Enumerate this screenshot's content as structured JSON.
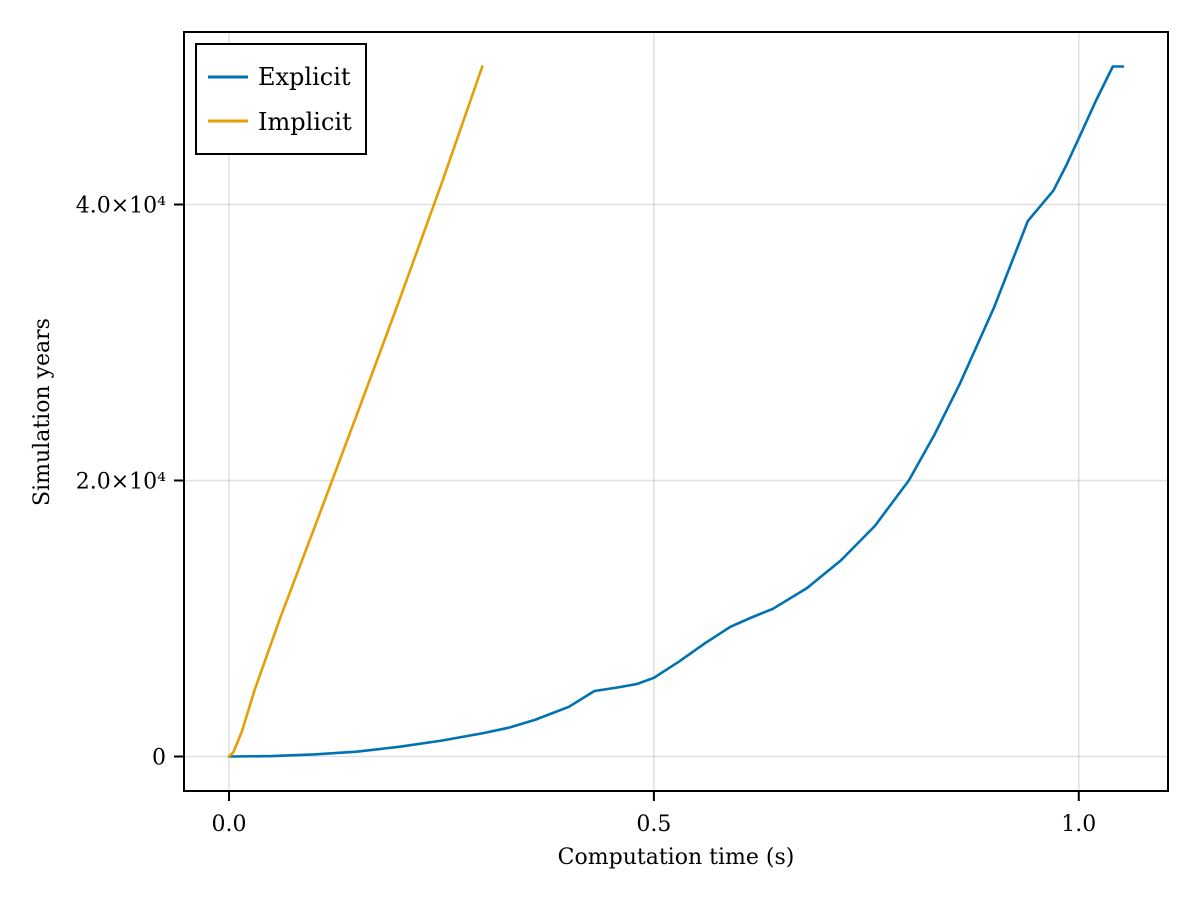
{
  "chart_data": {
    "type": "line",
    "title": "",
    "xlabel": "Computation time (s)",
    "ylabel": "Simulation years",
    "xlim": [
      -0.053,
      1.105
    ],
    "ylim": [
      -2500,
      52500
    ],
    "xticks": [
      0.0,
      0.5,
      1.0
    ],
    "xtick_labels": [
      "0.0",
      "0.5",
      "1.0"
    ],
    "yticks": [
      0,
      20000,
      40000
    ],
    "ytick_labels": [
      "0",
      "2.0×10⁴",
      "4.0×10⁴"
    ],
    "grid": true,
    "legend_position": "top-left",
    "series": [
      {
        "name": "Explicit",
        "color": "#0072B2",
        "x": [
          0.0,
          0.05,
          0.1,
          0.15,
          0.2,
          0.25,
          0.3,
          0.33,
          0.36,
          0.4,
          0.43,
          0.457,
          0.48,
          0.5,
          0.53,
          0.56,
          0.59,
          0.612,
          0.64,
          0.68,
          0.72,
          0.76,
          0.8,
          0.83,
          0.86,
          0.9,
          0.94,
          0.97,
          0.985,
          1.0,
          1.02,
          1.04,
          1.052
        ],
        "y": [
          0,
          30,
          150,
          350,
          700,
          1150,
          1700,
          2100,
          2650,
          3600,
          4750,
          5000,
          5250,
          5700,
          6900,
          8200,
          9400,
          10000,
          10700,
          12200,
          14200,
          16700,
          20000,
          23300,
          27000,
          32500,
          38800,
          41000,
          42800,
          44800,
          47500,
          50000,
          50000
        ]
      },
      {
        "name": "Implicit",
        "color": "#E69F00",
        "x": [
          0.0,
          0.005,
          0.015,
          0.03,
          0.06,
          0.1,
          0.15,
          0.2,
          0.25,
          0.298
        ],
        "y": [
          0,
          300,
          1800,
          4800,
          10000,
          16500,
          24700,
          33000,
          41500,
          50000
        ]
      }
    ]
  },
  "legend": {
    "items": [
      {
        "label": "Explicit",
        "color": "#0072B2"
      },
      {
        "label": "Implicit",
        "color": "#E69F00"
      }
    ]
  }
}
